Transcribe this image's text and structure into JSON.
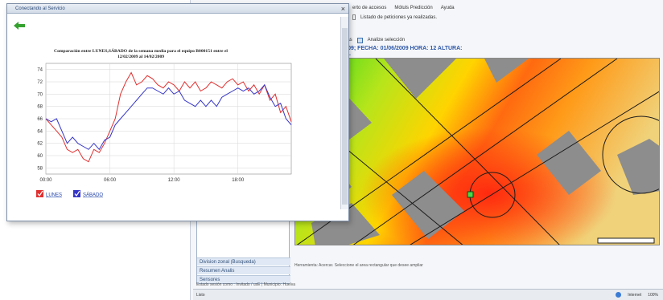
{
  "background_app": {
    "menu": [
      "erto de accesos",
      "Mótuls Predicción",
      "Ayuda"
    ],
    "sub_action": "Listado de peticiones ya realizadas.",
    "toolbar": [
      "eras",
      "Analize selección"
    ],
    "map_header": "2009; FECHA: 01/06/2009 HORA: 12 ALTURA: 4M.",
    "left_panel": [
      "Division zonal (Busqueda)",
      "Resumen Analis",
      "Sensores"
    ],
    "tool_hint": "Herramienta: Acercar. Seleccione el area rectangular que desee ampliar",
    "info_bar": "Estado sesión como : Invitado / usE | Municipio: Huelva",
    "status": {
      "left": "Listo",
      "zone": "Internet",
      "zoom": "100%"
    }
  },
  "popup": {
    "title": "Conectando al Servicio",
    "close_label": "×"
  },
  "colors": {
    "lunes": "#e03030",
    "sabado": "#3535c8",
    "accent": "#2d57a8"
  },
  "chart_data": {
    "type": "line",
    "title_line1": "Comparación entre LUNES,SÁBADO de la semana media para el equipo B000151 entre el",
    "title_line2": "12/02/2009 al 14/02/2009",
    "ylim": [
      57,
      75
    ],
    "yticks": [
      58,
      60,
      62,
      64,
      66,
      68,
      70,
      72,
      74
    ],
    "xlim": [
      0,
      23
    ],
    "xticks": [
      {
        "h": 0,
        "label": "00:00"
      },
      {
        "h": 6,
        "label": "06:00"
      },
      {
        "h": 12,
        "label": "12:00"
      },
      {
        "h": 18,
        "label": "18:00"
      }
    ],
    "series": [
      {
        "name": "LUNES",
        "x": [
          0,
          0.5,
          1,
          1.5,
          2,
          2.5,
          3,
          3.5,
          4,
          4.5,
          5,
          5.5,
          6,
          6.5,
          7,
          7.5,
          8,
          8.5,
          9,
          9.5,
          10,
          10.5,
          11,
          11.5,
          12,
          12.5,
          13,
          13.5,
          14,
          14.5,
          15,
          15.5,
          16,
          16.5,
          17,
          17.5,
          18,
          18.5,
          19,
          19.5,
          20,
          20.5,
          21,
          21.5,
          22,
          22.5,
          23
        ],
        "values": [
          66,
          65,
          64,
          63,
          61,
          60.5,
          61,
          59.5,
          59,
          61,
          60.5,
          62,
          64,
          66,
          70,
          72,
          73.5,
          71.5,
          72,
          73,
          72.5,
          71.5,
          71,
          72,
          71.5,
          70.5,
          72,
          71,
          72,
          70.5,
          71,
          72,
          71.5,
          71,
          72,
          72.5,
          71.5,
          72,
          70.5,
          71.5,
          70,
          71.5,
          69,
          70,
          67,
          68,
          65.5
        ]
      },
      {
        "name": "SÁBADO",
        "x": [
          0,
          0.5,
          1,
          1.5,
          2,
          2.5,
          3,
          3.5,
          4,
          4.5,
          5,
          5.5,
          6,
          6.5,
          7,
          7.5,
          8,
          8.5,
          9,
          9.5,
          10,
          10.5,
          11,
          11.5,
          12,
          12.5,
          13,
          13.5,
          14,
          14.5,
          15,
          15.5,
          16,
          16.5,
          17,
          17.5,
          18,
          18.5,
          19,
          19.5,
          20,
          20.5,
          21,
          21.5,
          22,
          22.5,
          23
        ],
        "values": [
          66,
          65.5,
          66,
          64,
          62,
          63,
          62,
          61.5,
          61,
          62,
          61,
          62.5,
          63,
          65,
          66,
          67,
          68,
          69,
          70,
          71,
          71,
          70.5,
          70,
          71,
          70,
          70.5,
          69,
          68.5,
          68,
          69,
          68,
          69,
          68,
          69.5,
          70,
          70.5,
          71,
          70.5,
          71,
          70,
          70.5,
          71.5,
          69.5,
          68,
          68.5,
          66,
          65
        ]
      }
    ]
  }
}
